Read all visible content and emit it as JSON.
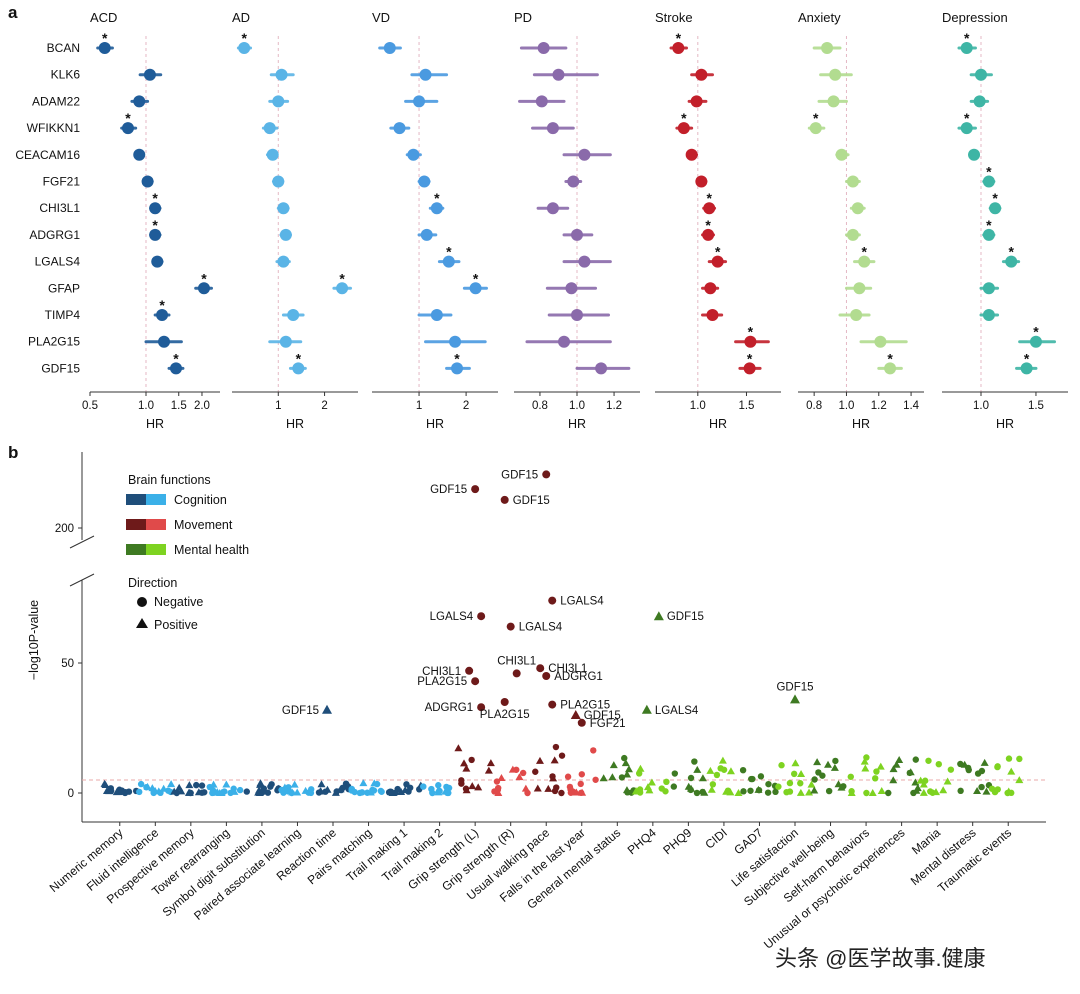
{
  "panel_a_letter": "a",
  "panel_b_letter": "b",
  "watermark": "头条 @医学故事.健康",
  "colors": {
    "ACD": "#1f5c99",
    "AD": "#5ab4e6",
    "VD": "#4a9ae0",
    "PD": "#8a6aaa",
    "Stroke": "#c21f2a",
    "Anxiety": "#b2dc90",
    "Depression": "#3eb5a5",
    "cog_dark": "#1f4e7a",
    "cog_light": "#3bb0e8",
    "mov_dark": "#6e1a1a",
    "mov_light": "#e04a4a",
    "mh_dark": "#3e7a22",
    "mh_light": "#7ed321"
  },
  "chart_data": [
    {
      "type": "forest",
      "rows": [
        "BCAN",
        "KLK6",
        "ADAM22",
        "WFIKKN1",
        "CEACAM16",
        "FGF21",
        "CHI3L1",
        "ADGRG1",
        "LGALS4",
        "GFAP",
        "TIMP4",
        "PLA2G15",
        "GDF15"
      ],
      "xlabel": "HR",
      "panels": [
        {
          "title": "ACD",
          "color_key": "ACD",
          "log": true,
          "xlim": [
            0.5,
            2.5
          ],
          "ticks": [
            0.5,
            1.0,
            1.5,
            2.0
          ],
          "tick_labels": [
            "0.5",
            "1.0",
            "1.5",
            "2.0"
          ],
          "hr": [
            0.6,
            1.05,
            0.92,
            0.8,
            0.92,
            1.02,
            1.12,
            1.12,
            1.15,
            2.05,
            1.22,
            1.25,
            1.45
          ],
          "lo": [
            0.55,
            0.93,
            0.84,
            0.74,
            0.88,
            0.97,
            1.06,
            1.06,
            1.09,
            1.85,
            1.12,
            1.0,
            1.33
          ],
          "hi": [
            0.66,
            1.2,
            1.02,
            0.88,
            0.97,
            1.08,
            1.19,
            1.19,
            1.22,
            2.25,
            1.33,
            1.55,
            1.58
          ],
          "star": [
            true,
            false,
            false,
            true,
            false,
            false,
            true,
            true,
            false,
            true,
            true,
            false,
            true
          ]
        },
        {
          "title": "AD",
          "color_key": "AD",
          "log": true,
          "xlim": [
            0.5,
            3.3
          ],
          "ticks": [
            1,
            2
          ],
          "tick_labels": [
            "1",
            "2"
          ],
          "hr": [
            0.6,
            1.05,
            1.0,
            0.88,
            0.92,
            1.0,
            1.08,
            1.12,
            1.08,
            2.6,
            1.25,
            1.12,
            1.35
          ],
          "lo": [
            0.55,
            0.9,
            0.88,
            0.8,
            0.85,
            0.93,
            1.0,
            1.04,
            0.98,
            2.3,
            1.08,
            0.88,
            1.2
          ],
          "hi": [
            0.66,
            1.25,
            1.15,
            0.98,
            0.98,
            1.07,
            1.16,
            1.2,
            1.18,
            2.95,
            1.45,
            1.4,
            1.5
          ],
          "star": [
            true,
            false,
            false,
            false,
            false,
            false,
            false,
            false,
            false,
            true,
            false,
            false,
            true
          ]
        },
        {
          "title": "VD",
          "color_key": "VD",
          "log": true,
          "xlim": [
            0.5,
            3.2
          ],
          "ticks": [
            1,
            2
          ],
          "tick_labels": [
            "1",
            "2"
          ],
          "hr": [
            0.65,
            1.1,
            1.0,
            0.75,
            0.92,
            1.08,
            1.3,
            1.12,
            1.55,
            2.3,
            1.3,
            1.7,
            1.75
          ],
          "lo": [
            0.56,
            0.9,
            0.82,
            0.66,
            0.84,
            1.0,
            1.18,
            1.0,
            1.35,
            1.95,
            1.0,
            1.1,
            1.5
          ],
          "hi": [
            0.76,
            1.5,
            1.3,
            0.86,
            1.02,
            1.16,
            1.42,
            1.28,
            1.8,
            2.7,
            1.6,
            2.65,
            2.1
          ],
          "star": [
            false,
            false,
            false,
            false,
            false,
            false,
            true,
            false,
            true,
            true,
            false,
            false,
            true
          ]
        },
        {
          "title": "PD",
          "color_key": "PD",
          "log": false,
          "xlim": [
            0.66,
            1.34
          ],
          "ticks": [
            0.8,
            1.0,
            1.2
          ],
          "tick_labels": [
            "0.8",
            "1.0",
            "1.2"
          ],
          "hr": [
            0.82,
            0.9,
            0.81,
            0.87,
            1.04,
            0.98,
            0.87,
            1.0,
            1.04,
            0.97,
            1.0,
            0.93,
            1.13
          ],
          "lo": [
            0.7,
            0.77,
            0.69,
            0.76,
            0.93,
            0.94,
            0.79,
            0.93,
            0.93,
            0.84,
            0.85,
            0.73,
            1.0
          ],
          "hi": [
            0.94,
            1.11,
            0.93,
            0.98,
            1.18,
            1.02,
            0.95,
            1.08,
            1.18,
            1.1,
            1.17,
            1.18,
            1.28
          ],
          "star": [
            false,
            false,
            false,
            false,
            false,
            false,
            false,
            false,
            false,
            false,
            false,
            false,
            false
          ]
        },
        {
          "title": "Stroke",
          "color_key": "Stroke",
          "log": true,
          "xlim": [
            0.7,
            2.0
          ],
          "ticks": [
            1.0,
            1.5
          ],
          "tick_labels": [
            "1.0",
            "1.5"
          ],
          "hr": [
            0.85,
            1.03,
            0.99,
            0.89,
            0.95,
            1.03,
            1.1,
            1.09,
            1.18,
            1.11,
            1.13,
            1.55,
            1.54
          ],
          "lo": [
            0.8,
            0.95,
            0.93,
            0.84,
            0.92,
            1.0,
            1.05,
            1.04,
            1.1,
            1.04,
            1.04,
            1.37,
            1.42
          ],
          "hi": [
            0.91,
            1.13,
            1.07,
            0.95,
            0.99,
            1.07,
            1.15,
            1.14,
            1.26,
            1.18,
            1.22,
            1.8,
            1.68
          ],
          "star": [
            true,
            false,
            false,
            true,
            false,
            false,
            true,
            true,
            true,
            false,
            false,
            true,
            true
          ]
        },
        {
          "title": "Anxiety",
          "color_key": "Anxiety",
          "log": false,
          "xlim": [
            0.7,
            1.48
          ],
          "ticks": [
            0.8,
            1.0,
            1.2,
            1.4
          ],
          "tick_labels": [
            "0.8",
            "1.0",
            "1.2",
            "1.4"
          ],
          "hr": [
            0.88,
            0.93,
            0.92,
            0.81,
            0.97,
            1.04,
            1.07,
            1.04,
            1.11,
            1.08,
            1.06,
            1.21,
            1.27
          ],
          "lo": [
            0.8,
            0.84,
            0.83,
            0.77,
            0.94,
            1.0,
            1.03,
            1.0,
            1.05,
            1.0,
            0.96,
            1.09,
            1.2
          ],
          "hi": [
            0.96,
            1.03,
            1.0,
            0.86,
            1.01,
            1.08,
            1.11,
            1.08,
            1.17,
            1.15,
            1.14,
            1.37,
            1.34
          ],
          "star": [
            false,
            false,
            false,
            true,
            false,
            false,
            false,
            false,
            true,
            false,
            false,
            false,
            true
          ]
        },
        {
          "title": "Depression",
          "color_key": "Depression",
          "log": true,
          "xlim": [
            0.75,
            1.9
          ],
          "ticks": [
            1.0,
            1.5
          ],
          "tick_labels": [
            "1.0",
            "1.5"
          ],
          "hr": [
            0.9,
            1.0,
            0.99,
            0.9,
            0.95,
            1.06,
            1.11,
            1.06,
            1.25,
            1.06,
            1.06,
            1.5,
            1.4
          ],
          "lo": [
            0.85,
            0.93,
            0.93,
            0.85,
            0.92,
            1.02,
            1.07,
            1.02,
            1.18,
            1.0,
            1.0,
            1.33,
            1.3
          ],
          "hi": [
            0.96,
            1.08,
            1.05,
            0.96,
            0.98,
            1.1,
            1.15,
            1.1,
            1.32,
            1.13,
            1.13,
            1.72,
            1.5
          ],
          "star": [
            true,
            false,
            false,
            true,
            false,
            true,
            true,
            true,
            true,
            false,
            false,
            true,
            true
          ]
        }
      ]
    },
    {
      "type": "scatter",
      "ylabel": "−log10P-value",
      "y_ticks": [
        0,
        50,
        200
      ],
      "y_break": true,
      "threshold_y": 5,
      "legend": {
        "title1": "Brain functions",
        "groups": [
          {
            "label": "Cognition",
            "dark_key": "cog_dark",
            "light_key": "cog_light"
          },
          {
            "label": "Movement",
            "dark_key": "mov_dark",
            "light_key": "mov_light"
          },
          {
            "label": "Mental health",
            "dark_key": "mh_dark",
            "light_key": "mh_light"
          }
        ],
        "title2": "Direction",
        "directions": [
          {
            "label": "Negative",
            "shape": "circle"
          },
          {
            "label": "Positive",
            "shape": "triangle"
          }
        ]
      },
      "categories": [
        {
          "label": "Numeric memory",
          "group": "cog",
          "shade": 0
        },
        {
          "label": "Fluid intelligence",
          "group": "cog",
          "shade": 1
        },
        {
          "label": "Prospective memory",
          "group": "cog",
          "shade": 0
        },
        {
          "label": "Tower rearranging",
          "group": "cog",
          "shade": 1
        },
        {
          "label": "Symbol digit substitution",
          "group": "cog",
          "shade": 0
        },
        {
          "label": "Paired associate learning",
          "group": "cog",
          "shade": 1
        },
        {
          "label": "Reaction time",
          "group": "cog",
          "shade": 0
        },
        {
          "label": "Pairs matching",
          "group": "cog",
          "shade": 1
        },
        {
          "label": "Trail making 1",
          "group": "cog",
          "shade": 0
        },
        {
          "label": "Trail making 2",
          "group": "cog",
          "shade": 1
        },
        {
          "label": "Grip strength (L)",
          "group": "mov",
          "shade": 0
        },
        {
          "label": "Grip strength (R)",
          "group": "mov",
          "shade": 1
        },
        {
          "label": "Usual walking pace",
          "group": "mov",
          "shade": 0
        },
        {
          "label": "Falls in the last year",
          "group": "mov",
          "shade": 1
        },
        {
          "label": "General mental status",
          "group": "mh",
          "shade": 0
        },
        {
          "label": "PHQ4",
          "group": "mh",
          "shade": 1
        },
        {
          "label": "PHQ9",
          "group": "mh",
          "shade": 0
        },
        {
          "label": "CIDI",
          "group": "mh",
          "shade": 1
        },
        {
          "label": "GAD7",
          "group": "mh",
          "shade": 0
        },
        {
          "label": "Life satisfaction",
          "group": "mh",
          "shade": 1
        },
        {
          "label": "Subjective well-being",
          "group": "mh",
          "shade": 0
        },
        {
          "label": "Self-harm behaviors",
          "group": "mh",
          "shade": 1
        },
        {
          "label": "Unusual or psychotic experiences",
          "group": "mh",
          "shade": 0
        },
        {
          "label": "Mania",
          "group": "mh",
          "shade": 1
        },
        {
          "label": "Mental distress",
          "group": "mh",
          "shade": 0
        },
        {
          "label": "Traumatic events",
          "group": "mh",
          "shade": 1
        }
      ],
      "labeled_points": [
        {
          "label": "GDF15",
          "cat": 6,
          "y": 32,
          "shape": "triangle",
          "anchor": "left"
        },
        {
          "label": "GDF15",
          "cat": 10,
          "y": 258,
          "shape": "circle",
          "anchor": "left"
        },
        {
          "label": "LGALS4",
          "cat": 10,
          "y": 68,
          "shape": "circle",
          "anchor": "left"
        },
        {
          "label": "CHI3L1",
          "cat": 10,
          "y": 47,
          "shape": "circle",
          "anchor": "left"
        },
        {
          "label": "PLA2G15",
          "cat": 10,
          "y": 43,
          "shape": "circle",
          "anchor": "left"
        },
        {
          "label": "ADGRG1",
          "cat": 10,
          "y": 33,
          "shape": "circle",
          "anchor": "left"
        },
        {
          "label": "GDF15",
          "cat": 11,
          "y": 242,
          "shape": "circle",
          "anchor": "right"
        },
        {
          "label": "LGALS4",
          "cat": 11,
          "y": 64,
          "shape": "circle",
          "anchor": "right"
        },
        {
          "label": "CHI3L1",
          "cat": 11,
          "y": 46,
          "shape": "circle",
          "anchor": "above"
        },
        {
          "label": "PLA2G15",
          "cat": 11,
          "y": 35,
          "shape": "circle",
          "anchor": "below"
        },
        {
          "label": "GDF15",
          "cat": 12,
          "y": 280,
          "shape": "circle",
          "anchor": "left"
        },
        {
          "label": "LGALS4",
          "cat": 12,
          "y": 74,
          "shape": "circle",
          "anchor": "right"
        },
        {
          "label": "CHI3L1",
          "cat": 12,
          "y": 48,
          "shape": "circle",
          "anchor": "right"
        },
        {
          "label": "ADGRG1",
          "cat": 12,
          "y": 45,
          "shape": "circle",
          "anchor": "right"
        },
        {
          "label": "PLA2G15",
          "cat": 12,
          "y": 34,
          "shape": "circle",
          "anchor": "right"
        },
        {
          "label": "GDF15",
          "cat": 13,
          "y": 30,
          "shape": "triangle",
          "anchor": "right"
        },
        {
          "label": "FGF21",
          "cat": 13,
          "y": 27,
          "shape": "circle",
          "anchor": "right"
        },
        {
          "label": "GDF15",
          "cat": 15,
          "y": 68,
          "shape": "triangle",
          "anchor": "right"
        },
        {
          "label": "LGALS4",
          "cat": 15,
          "y": 32,
          "shape": "triangle",
          "anchor": "right"
        },
        {
          "label": "GDF15",
          "cat": 19,
          "y": 36,
          "shape": "triangle",
          "anchor": "above"
        }
      ],
      "note": ""
    }
  ]
}
